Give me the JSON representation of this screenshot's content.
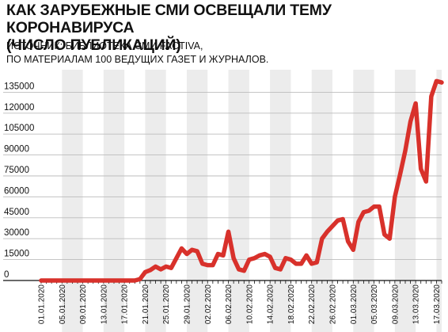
{
  "header": {
    "title_line1": "КАК ЗАРУБЕЖНЫЕ СМИ ОСВЕЩАЛИ ТЕМУ КОРОНАВИРУСА",
    "title_line2": "(ЧИСЛО ПУБЛИКАЦИЙ)",
    "source_line1": "ИСТОЧНИК: БИБЛИОТЕКА СМИ FACTIVA,",
    "source_line2": "ПО МАТЕРИАЛАМ 100 ВЕДУЩИХ ГАЗЕТ И ЖУРНАЛОВ."
  },
  "colors": {
    "line": "#d8312b",
    "band": "#ececec",
    "grid": "#bdbdbd",
    "axis": "#111111"
  },
  "chart_data": {
    "type": "line",
    "title": "КАК ЗАРУБЕЖНЫЕ СМИ ОСВЕЩАЛИ ТЕМУ КОРОНАВИРУСА (ЧИСЛО ПУБЛИКАЦИЙ)",
    "xlabel": "",
    "ylabel": "",
    "ylim": [
      0,
      150000
    ],
    "yticks": [
      0,
      15000,
      30000,
      45000,
      60000,
      75000,
      90000,
      105000,
      120000,
      135000
    ],
    "xlim": [
      "01.01.2020",
      "18.03.2020"
    ],
    "grid": true,
    "legend": "none",
    "xtick_labels": [
      "01.01.2020",
      "05.01.2020",
      "09.01.2020",
      "13.01.2020",
      "17.01.2020",
      "21.01.2020",
      "25.01.2020",
      "29.01.2020",
      "02.02.2020",
      "06.02.2020",
      "10.02.2020",
      "14.02.2020",
      "18.02.2020",
      "22.02.2020",
      "26.02.2020",
      "01.03.2020",
      "05.03.2020",
      "09.03.2020",
      "13.03.2020",
      "17.03.2020"
    ],
    "x": [
      "01.01.2020",
      "02.01.2020",
      "03.01.2020",
      "04.01.2020",
      "05.01.2020",
      "06.01.2020",
      "07.01.2020",
      "08.01.2020",
      "09.01.2020",
      "10.01.2020",
      "11.01.2020",
      "12.01.2020",
      "13.01.2020",
      "14.01.2020",
      "15.01.2020",
      "16.01.2020",
      "17.01.2020",
      "18.01.2020",
      "19.01.2020",
      "20.01.2020",
      "21.01.2020",
      "22.01.2020",
      "23.01.2020",
      "24.01.2020",
      "25.01.2020",
      "26.01.2020",
      "27.01.2020",
      "28.01.2020",
      "29.01.2020",
      "30.01.2020",
      "31.01.2020",
      "01.02.2020",
      "02.02.2020",
      "03.02.2020",
      "04.02.2020",
      "05.02.2020",
      "06.02.2020",
      "07.02.2020",
      "08.02.2020",
      "09.02.2020",
      "10.02.2020",
      "11.02.2020",
      "12.02.2020",
      "13.02.2020",
      "14.02.2020",
      "15.02.2020",
      "16.02.2020",
      "17.02.2020",
      "18.02.2020",
      "19.02.2020",
      "20.02.2020",
      "21.02.2020",
      "22.02.2020",
      "23.02.2020",
      "24.02.2020",
      "25.02.2020",
      "26.02.2020",
      "27.02.2020",
      "28.02.2020",
      "29.02.2020",
      "01.03.2020",
      "02.03.2020",
      "03.03.2020",
      "04.03.2020",
      "05.03.2020",
      "06.03.2020",
      "07.03.2020",
      "08.03.2020",
      "09.03.2020",
      "10.03.2020",
      "11.03.2020",
      "12.03.2020",
      "13.03.2020",
      "14.03.2020",
      "15.03.2020",
      "16.03.2020",
      "17.03.2020",
      "18.03.2020"
    ],
    "series": [
      {
        "values": [
          0,
          0,
          0,
          0,
          0,
          0,
          0,
          0,
          0,
          0,
          0,
          0,
          0,
          0,
          0,
          0,
          0,
          0,
          0,
          1000,
          6000,
          7500,
          10000,
          8000,
          10000,
          9000,
          16000,
          23000,
          19000,
          22000,
          21000,
          12000,
          11000,
          11000,
          19000,
          18000,
          35000,
          16000,
          8000,
          7000,
          15000,
          16000,
          18000,
          19000,
          17000,
          9000,
          8000,
          16000,
          15000,
          12000,
          12000,
          18000,
          12000,
          13000,
          30000,
          35000,
          39000,
          43000,
          44000,
          28000,
          22000,
          42000,
          49000,
          50000,
          53000,
          53000,
          33000,
          30000,
          60000,
          76000,
          93000,
          114000,
          127000,
          80000,
          71000,
          132000,
          143000,
          142000
        ]
      }
    ]
  }
}
